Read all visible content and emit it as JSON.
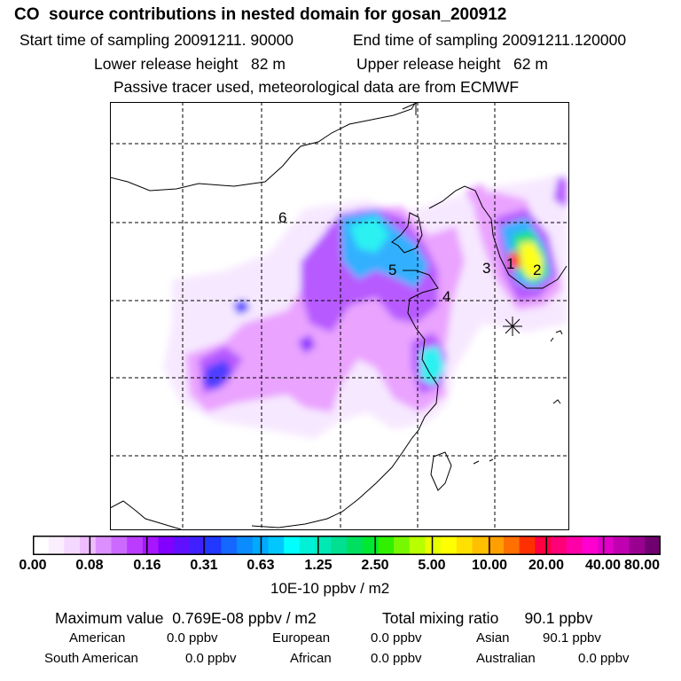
{
  "header": {
    "title": "CO  source contributions in nested domain for gosan_200912",
    "start_time": "Start time of sampling 20091211. 90000",
    "end_time": "End time of sampling 20091211.120000",
    "lower_height": "Lower release height   82 m",
    "upper_height": "Upper release height   62 m",
    "note": "Passive tracer used, meteorological data are from ECMWF"
  },
  "map": {
    "region_labels": [
      "1",
      "2",
      "3",
      "4",
      "5",
      "6"
    ],
    "receptor_marker_icon": "asterisk-icon",
    "plume_colors": [
      "#f6e6ff",
      "#e89aff",
      "#b04aff",
      "#8a1cff",
      "#3a2cff",
      "#1ea8ff",
      "#14f0f0",
      "#00e070",
      "#ffff00",
      "#ff2020"
    ]
  },
  "colorbar": {
    "colors": [
      "#ffffff",
      "#fbeeff",
      "#f4d8ff",
      "#eebcff",
      "#dc90ff",
      "#cc6aff",
      "#bb3cff",
      "#a716ff",
      "#8200ff",
      "#6010ff",
      "#4020ff",
      "#2038ff",
      "#1468ff",
      "#0a8cff",
      "#00aaff",
      "#00c8ff",
      "#00ffff",
      "#00f0d8",
      "#00e8b4",
      "#00e090",
      "#00e060",
      "#00e830",
      "#30f000",
      "#78f800",
      "#b8ff00",
      "#e8ff00",
      "#ffff00",
      "#ffe000",
      "#ffc000",
      "#ffa000",
      "#ff7000",
      "#ff3000",
      "#ff0040",
      "#ff0078",
      "#ff00a8",
      "#ff00d0",
      "#e000c8",
      "#c000b0",
      "#9a0090",
      "#700070"
    ],
    "tick_labels": [
      "0.00",
      "0.08",
      "0.16",
      "0.31",
      "0.63",
      "1.25",
      "2.50",
      "5.00",
      "10.00",
      "20.00",
      "40.00",
      "80.00"
    ],
    "units": "10E-10 ppbv / m2"
  },
  "summary": {
    "max_value": "Maximum value  0.769E-08 ppbv / m2",
    "total_mixing": "Total mixing ratio      90.1 ppbv",
    "american_label": "American",
    "american_value": "0.0 ppbv",
    "european_label": "European",
    "european_value": "0.0 ppbv",
    "asian_label": "Asian",
    "asian_value": "90.1 ppbv",
    "south_american_label": "South American",
    "south_american_value": "0.0 ppbv",
    "african_label": "African",
    "african_value": "0.0 ppbv",
    "australian_label": "Australian",
    "australian_value": "0.0 ppbv"
  }
}
